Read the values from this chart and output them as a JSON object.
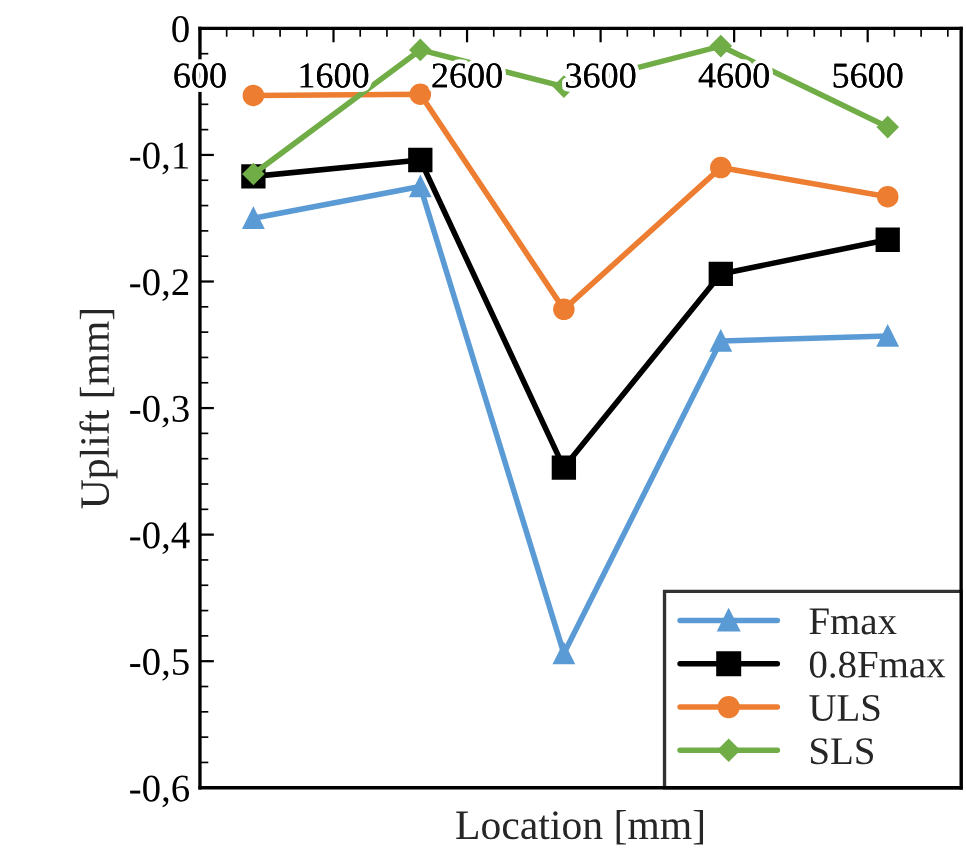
{
  "chart_data": {
    "type": "line",
    "xlabel": "Location [mm]",
    "ylabel": "Uplift [mm]",
    "x": [
      1000,
      2250,
      3325,
      4500,
      5750
    ],
    "series": [
      {
        "name": "Fmax",
        "color": "#5b9bd5",
        "marker": "triangle",
        "values": [
          -0.15,
          -0.125,
          -0.494,
          -0.247,
          -0.243
        ]
      },
      {
        "name": "0.8Fmax",
        "color": "#000000",
        "marker": "square",
        "values": [
          -0.117,
          -0.104,
          -0.347,
          -0.194,
          -0.167
        ]
      },
      {
        "name": "ULS",
        "color": "#ed7d31",
        "marker": "circle",
        "values": [
          -0.053,
          -0.052,
          -0.222,
          -0.11,
          -0.133
        ]
      },
      {
        "name": "SLS",
        "color": "#70ad47",
        "marker": "diamond",
        "values": [
          -0.115,
          -0.017,
          -0.046,
          -0.014,
          -0.078
        ]
      }
    ],
    "xlim": [
      600,
      6300
    ],
    "xticks": [
      600,
      1600,
      2600,
      3600,
      4600,
      5600
    ],
    "ylim": [
      -0.6,
      0
    ],
    "yticks": [
      0,
      {
        "value": -0.1,
        "label": "-0,1"
      },
      {
        "value": -0.2,
        "label": "-0,2"
      },
      {
        "value": -0.3,
        "label": "-0,3"
      },
      {
        "value": -0.4,
        "label": "-0,4"
      },
      {
        "value": -0.5,
        "label": "-0,5"
      },
      {
        "value": -0.6,
        "label": "-0,6"
      }
    ],
    "grid": false,
    "legend": "bottom right",
    "line_style": "solid"
  }
}
